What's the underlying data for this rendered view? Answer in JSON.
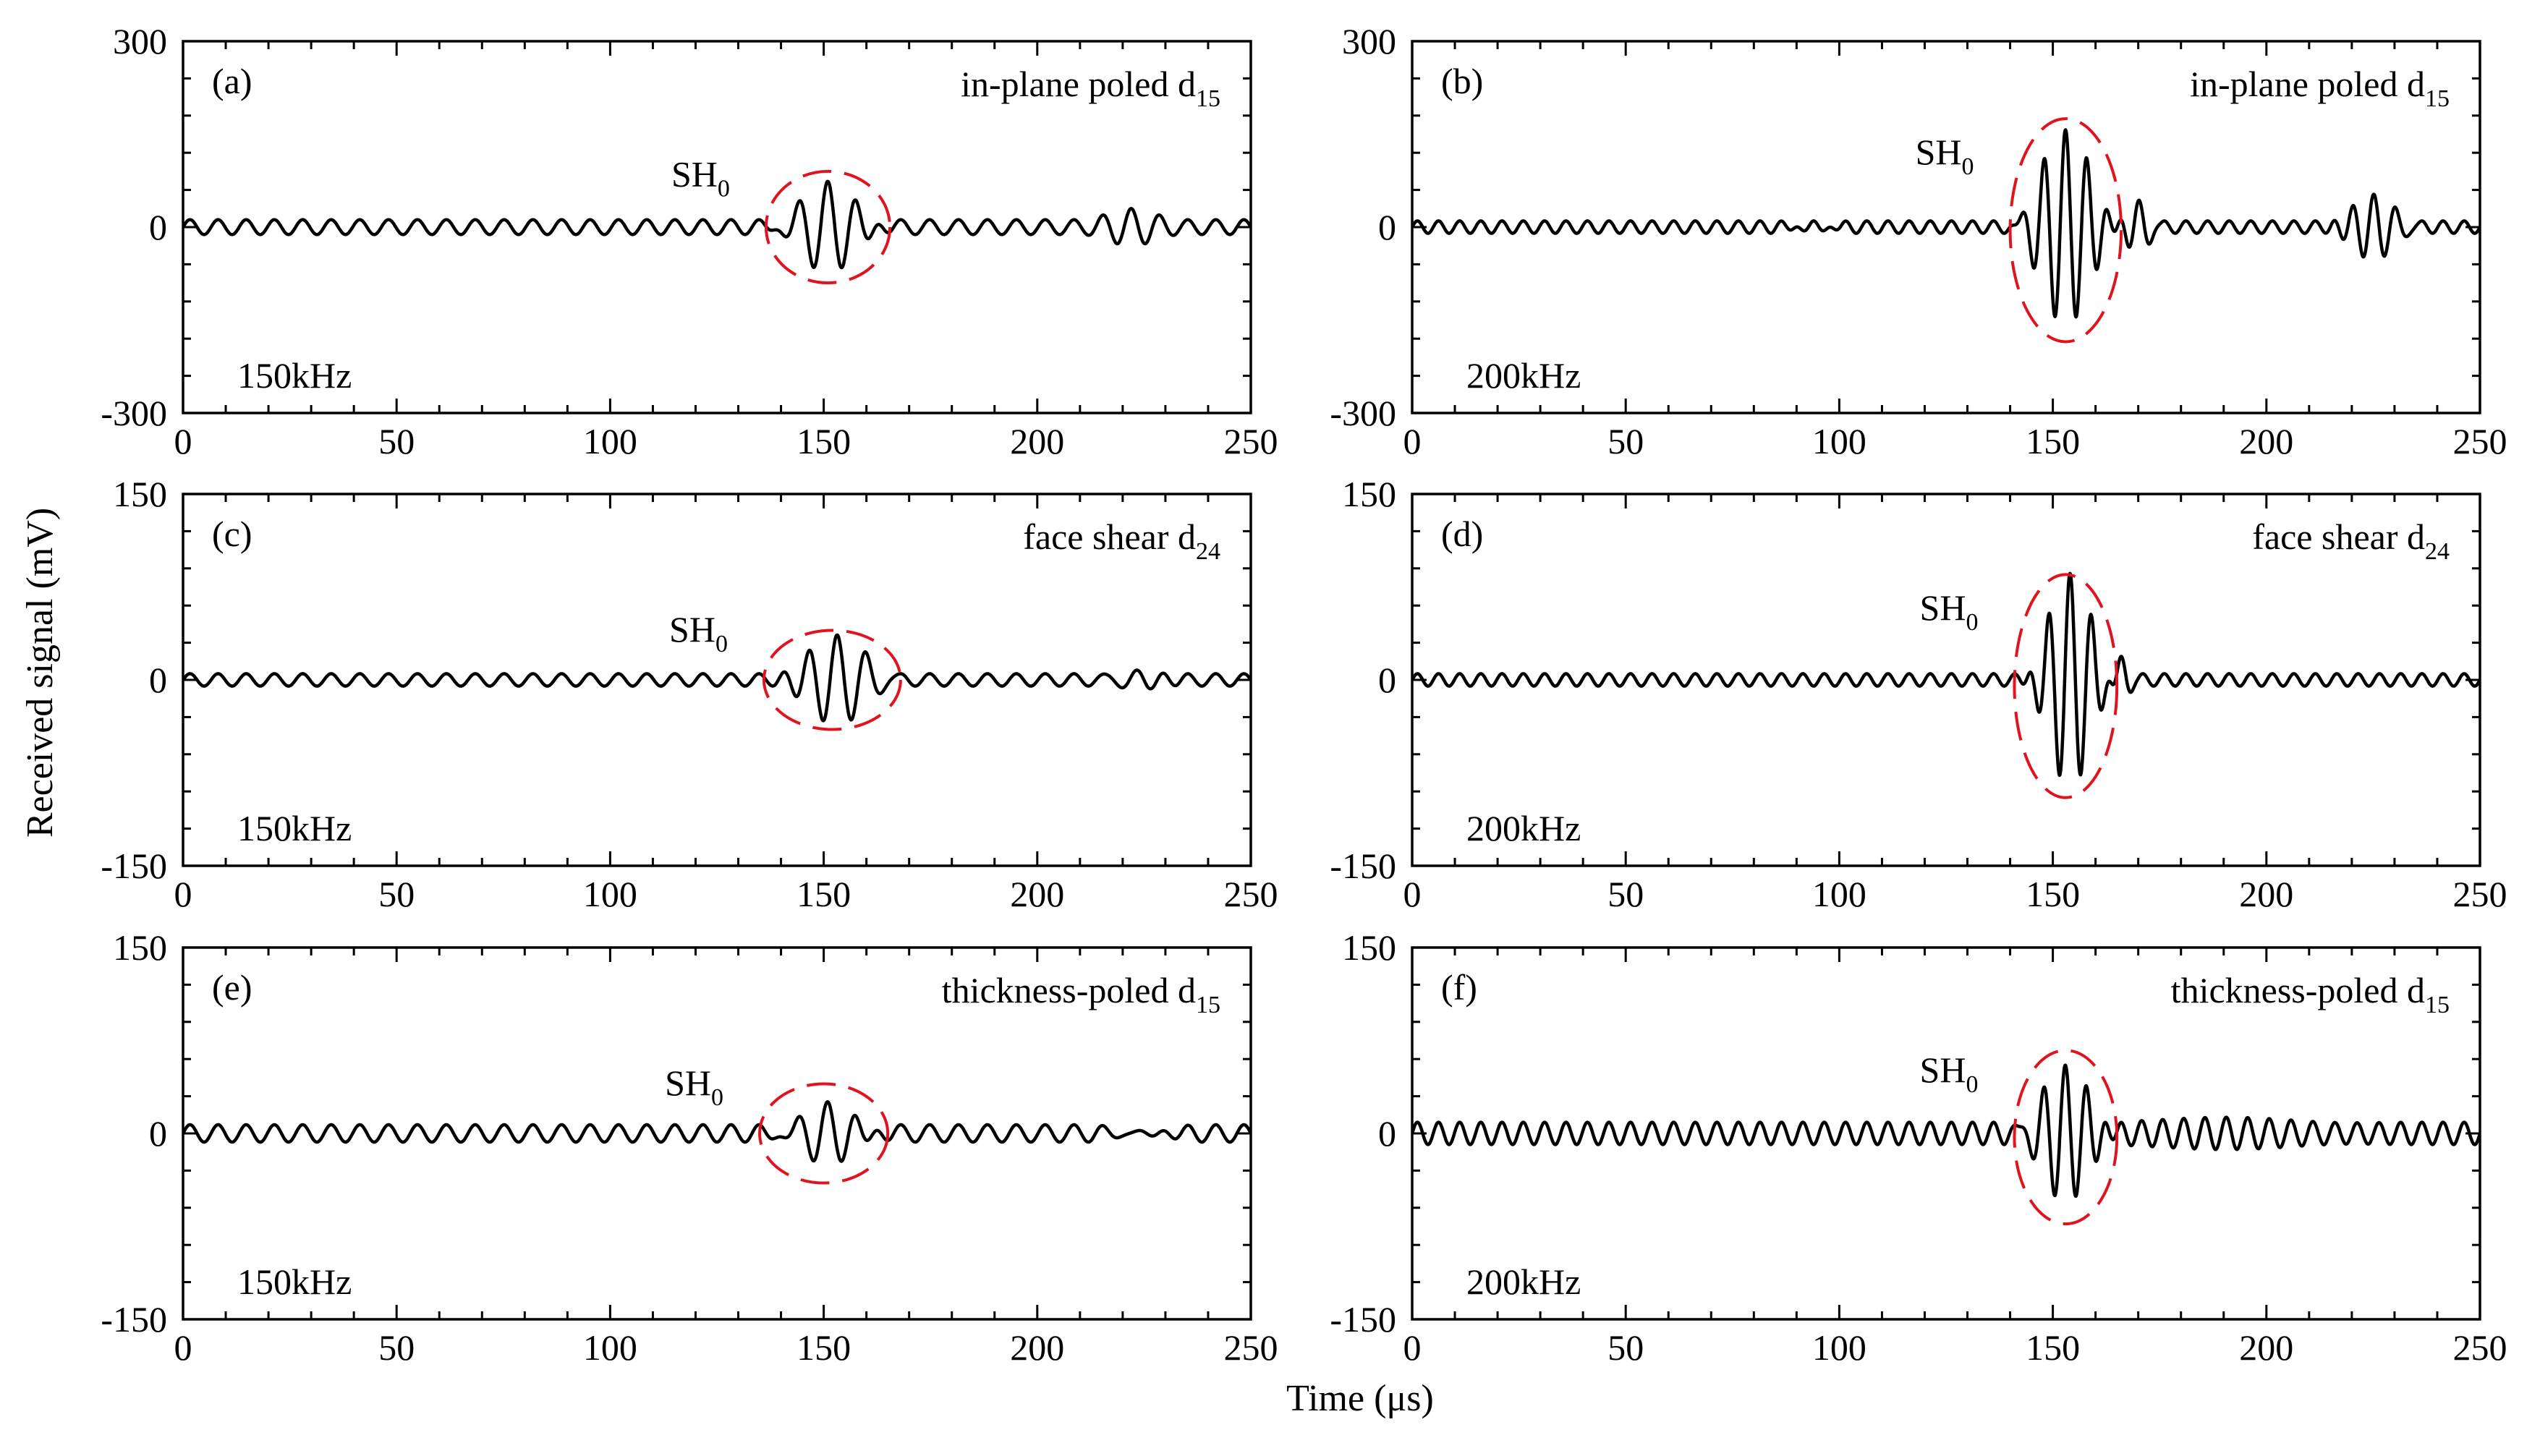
{
  "figure": {
    "xlabel": "Time (μs)",
    "ylabel": "Received signal (mV)"
  },
  "chart_data": [
    {
      "type": "line",
      "panel": "(a)",
      "mode_label": {
        "text": "in-plane poled d",
        "sub": "15"
      },
      "frequency_label": "150kHz",
      "wave_label": {
        "text": "SH",
        "sub": "0",
        "x": 150
      },
      "xlim": [
        0,
        250
      ],
      "ylim": [
        -300,
        300
      ],
      "xticks": [
        0,
        50,
        100,
        150,
        200,
        250
      ],
      "yticks": [
        -300,
        0,
        300
      ],
      "grid": false,
      "series": [
        {
          "center_frequency_khz": 150,
          "noise_amplitude_mv": 12,
          "packets": [
            {
              "center_us": 151,
              "halfwidth_us": 16,
              "amplitude_mv": 85
            },
            {
              "center_us": 222,
              "halfwidth_us": 12,
              "amplitude_mv": 18
            }
          ]
        }
      ],
      "highlight": {
        "center_x": 151,
        "center_y": 0,
        "rx": 14.5,
        "ry": 90
      }
    },
    {
      "type": "line",
      "panel": "(b)",
      "mode_label": {
        "text": "in-plane poled d",
        "sub": "15"
      },
      "frequency_label": "200kHz",
      "wave_label": {
        "text": "SH",
        "sub": "0",
        "x": 153
      },
      "xlim": [
        0,
        250
      ],
      "ylim": [
        -300,
        300
      ],
      "xticks": [
        0,
        50,
        100,
        150,
        200,
        250
      ],
      "yticks": [
        -300,
        0,
        300
      ],
      "grid": false,
      "series": [
        {
          "center_frequency_khz": 200,
          "noise_amplitude_mv": 10,
          "packets": [
            {
              "center_us": 94,
              "halfwidth_us": 8,
              "amplitude_mv": 20
            },
            {
              "center_us": 153,
              "halfwidth_us": 14,
              "amplitude_mv": 165
            },
            {
              "center_us": 170,
              "halfwidth_us": 6,
              "amplitude_mv": 40
            },
            {
              "center_us": 225,
              "halfwidth_us": 12,
              "amplitude_mv": 55
            }
          ]
        }
      ],
      "highlight": {
        "center_x": 153,
        "center_y": -5,
        "rx": 13,
        "ry": 180
      }
    },
    {
      "type": "line",
      "panel": "(c)",
      "mode_label": {
        "text": "face shear d",
        "sub": "24"
      },
      "frequency_label": "150kHz",
      "wave_label": {
        "text": "SH",
        "sub": "0",
        "x": 152
      },
      "xlim": [
        0,
        250
      ],
      "ylim": [
        -150,
        150
      ],
      "xticks": [
        0,
        50,
        100,
        150,
        200,
        250
      ],
      "yticks": [
        -150,
        0,
        150
      ],
      "grid": false,
      "series": [
        {
          "center_frequency_khz": 150,
          "noise_amplitude_mv": 5,
          "packets": [
            {
              "center_us": 153,
              "halfwidth_us": 16,
              "amplitude_mv": 36
            },
            {
              "center_us": 224,
              "halfwidth_us": 12,
              "amplitude_mv": 8
            }
          ]
        }
      ],
      "highlight": {
        "center_x": 152,
        "center_y": 0,
        "rx": 16,
        "ry": 40
      }
    },
    {
      "type": "line",
      "panel": "(d)",
      "mode_label": {
        "text": "face shear d",
        "sub": "24"
      },
      "frequency_label": "200kHz",
      "wave_label": {
        "text": "SH",
        "sub": "0",
        "x": 153
      },
      "xlim": [
        0,
        250
      ],
      "ylim": [
        -150,
        150
      ],
      "xticks": [
        0,
        50,
        100,
        150,
        200,
        250
      ],
      "yticks": [
        -150,
        0,
        150
      ],
      "grid": false,
      "series": [
        {
          "center_frequency_khz": 200,
          "noise_amplitude_mv": 5,
          "packets": [
            {
              "center_us": 154,
              "halfwidth_us": 12,
              "amplitude_mv": 90
            },
            {
              "center_us": 166,
              "halfwidth_us": 4,
              "amplitude_mv": 14
            }
          ]
        }
      ],
      "highlight": {
        "center_x": 153,
        "center_y": -5,
        "rx": 12,
        "ry": 90
      }
    },
    {
      "type": "line",
      "panel": "(e)",
      "mode_label": {
        "text": "thickness-poled d",
        "sub": "15"
      },
      "frequency_label": "150kHz",
      "wave_label": {
        "text": "SH",
        "sub": "0",
        "x": 150
      },
      "xlim": [
        0,
        250
      ],
      "ylim": [
        -150,
        150
      ],
      "xticks": [
        0,
        50,
        100,
        150,
        200,
        250
      ],
      "yticks": [
        -150,
        0,
        150
      ],
      "grid": false,
      "series": [
        {
          "center_frequency_khz": 150,
          "noise_amplitude_mv": 7,
          "packets": [
            {
              "center_us": 151,
              "halfwidth_us": 16,
              "amplitude_mv": 32
            },
            {
              "center_us": 225,
              "halfwidth_us": 12,
              "amplitude_mv": 8
            }
          ]
        }
      ],
      "highlight": {
        "center_x": 150,
        "center_y": 0,
        "rx": 15,
        "ry": 40
      }
    },
    {
      "type": "line",
      "panel": "(f)",
      "mode_label": {
        "text": "thickness-poled d",
        "sub": "15"
      },
      "frequency_label": "200kHz",
      "wave_label": {
        "text": "SH",
        "sub": "0",
        "x": 153
      },
      "xlim": [
        0,
        250
      ],
      "ylim": [
        -150,
        150
      ],
      "xticks": [
        0,
        50,
        100,
        150,
        200,
        250
      ],
      "yticks": [
        -150,
        0,
        150
      ],
      "grid": false,
      "series": [
        {
          "center_frequency_khz": 200,
          "noise_amplitude_mv": 9,
          "packets": [
            {
              "center_us": 153,
              "halfwidth_us": 14,
              "amplitude_mv": 62
            },
            {
              "center_us": 195,
              "halfwidth_us": 40,
              "amplitude_mv": 10
            }
          ]
        }
      ],
      "highlight": {
        "center_x": 153,
        "center_y": -3,
        "rx": 12,
        "ry": 70
      }
    }
  ]
}
